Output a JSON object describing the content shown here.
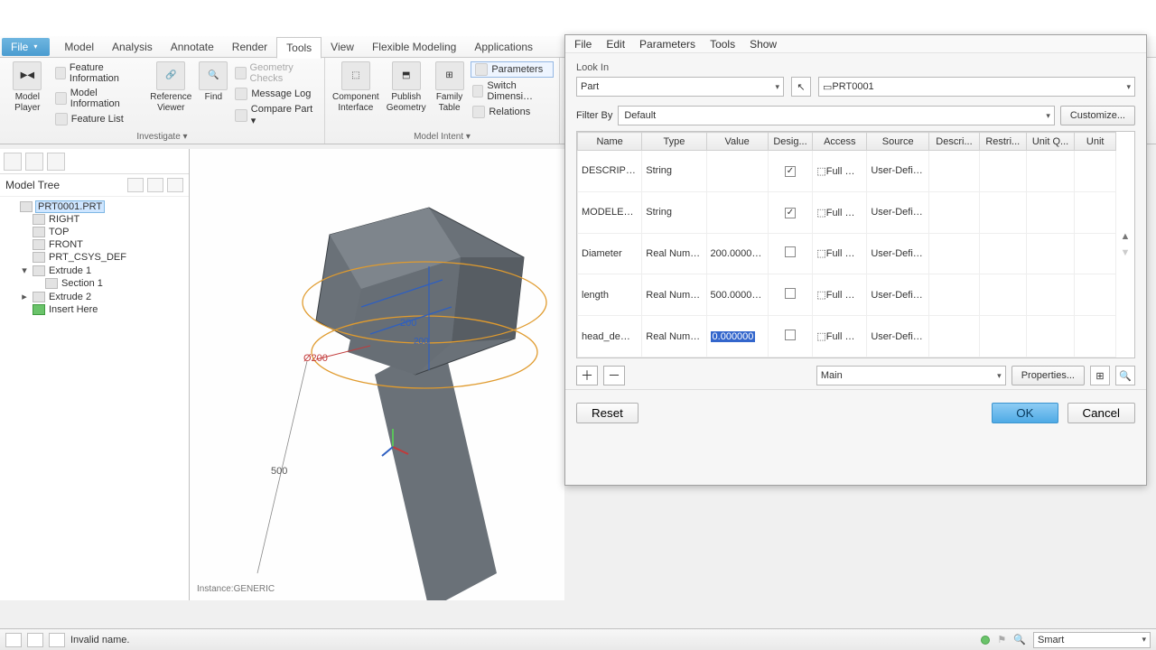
{
  "ribbon": {
    "file_label": "File",
    "tabs": [
      "Model",
      "Analysis",
      "Annotate",
      "Render",
      "Tools",
      "View",
      "Flexible Modeling",
      "Applications"
    ],
    "active_tab": "Tools",
    "groups": {
      "investigate": {
        "title": "Investigate ▾",
        "model_player": "Model\nPlayer",
        "feature_info": "Feature Information",
        "model_info": "Model Information",
        "feature_list": "Feature List",
        "reference_viewer": "Reference\nViewer",
        "find": "Find",
        "geometry_checks": "Geometry Checks",
        "message_log": "Message Log",
        "compare_part": "Compare Part ▾"
      },
      "model_intent": {
        "title": "Model Intent ▾",
        "component_interface": "Component\nInterface",
        "publish_geometry": "Publish\nGeometry",
        "family_table": "Family\nTable",
        "parameters": "Parameters",
        "switch_dimensions": "Switch Dimensi…",
        "relations": "Relations"
      }
    }
  },
  "model_tree": {
    "title": "Model Tree",
    "nodes": [
      {
        "label": "PRT0001.PRT",
        "selected": true,
        "indent": 0,
        "expander": ""
      },
      {
        "label": "RIGHT",
        "indent": 1,
        "expander": ""
      },
      {
        "label": "TOP",
        "indent": 1,
        "expander": ""
      },
      {
        "label": "FRONT",
        "indent": 1,
        "expander": ""
      },
      {
        "label": "PRT_CSYS_DEF",
        "indent": 1,
        "expander": ""
      },
      {
        "label": "Extrude 1",
        "indent": 1,
        "expander": "▾"
      },
      {
        "label": "Section 1",
        "indent": 2,
        "expander": ""
      },
      {
        "label": "Extrude 2",
        "indent": 1,
        "expander": "▸"
      },
      {
        "label": "Insert Here",
        "indent": 1,
        "expander": "",
        "green": true
      }
    ]
  },
  "dialog": {
    "menu": [
      "File",
      "Edit",
      "Parameters",
      "Tools",
      "Show"
    ],
    "look_in_label": "Look In",
    "look_in_value": "Part",
    "partname": "PRT0001",
    "filter_by_label": "Filter By",
    "filter_value": "Default",
    "customize": "Customize...",
    "columns": [
      "Name",
      "Type",
      "Value",
      "Desig...",
      "Access",
      "Source",
      "Descri...",
      "Restri...",
      "Unit Q...",
      "Unit"
    ],
    "rows": [
      {
        "name": "DESCRIP…",
        "type": "String",
        "value": "",
        "desig": true,
        "access": "⬚Full …",
        "source": "User-Defi…"
      },
      {
        "name": "MODELE…",
        "type": "String",
        "value": "",
        "desig": true,
        "access": "⬚Full …",
        "source": "User-Defi…"
      },
      {
        "name": "Diameter",
        "type": "Real Num…",
        "value": "200.0000…",
        "desig": false,
        "access": "⬚Full …",
        "source": "User-Defi…"
      },
      {
        "name": "length",
        "type": "Real Num…",
        "value": "500.0000…",
        "desig": false,
        "access": "⬚Full …",
        "source": "User-Defi…"
      },
      {
        "name": "head_de…",
        "type": "Real Num…",
        "value": "0.000000",
        "desig": false,
        "access": "⬚Full …",
        "source": "User-Defi…",
        "sel": true
      }
    ],
    "main_label": "Main",
    "properties": "Properties...",
    "reset": "Reset",
    "ok": "OK",
    "cancel": "Cancel"
  },
  "viewport": {
    "dim200": "200",
    "dim200b": "200",
    "dimdia": "Ø200",
    "dim500": "500",
    "instance": "Instance:GENERIC",
    "colors": {
      "solid": "#6a7178",
      "solid2": "#575d63",
      "edge": "#3a3f44",
      "sketch": "#e09b2e",
      "dim": "#2e5fc1",
      "dimred": "#c23a3a"
    }
  },
  "statusbar": {
    "msg": "Invalid name.",
    "smart": "Smart"
  }
}
